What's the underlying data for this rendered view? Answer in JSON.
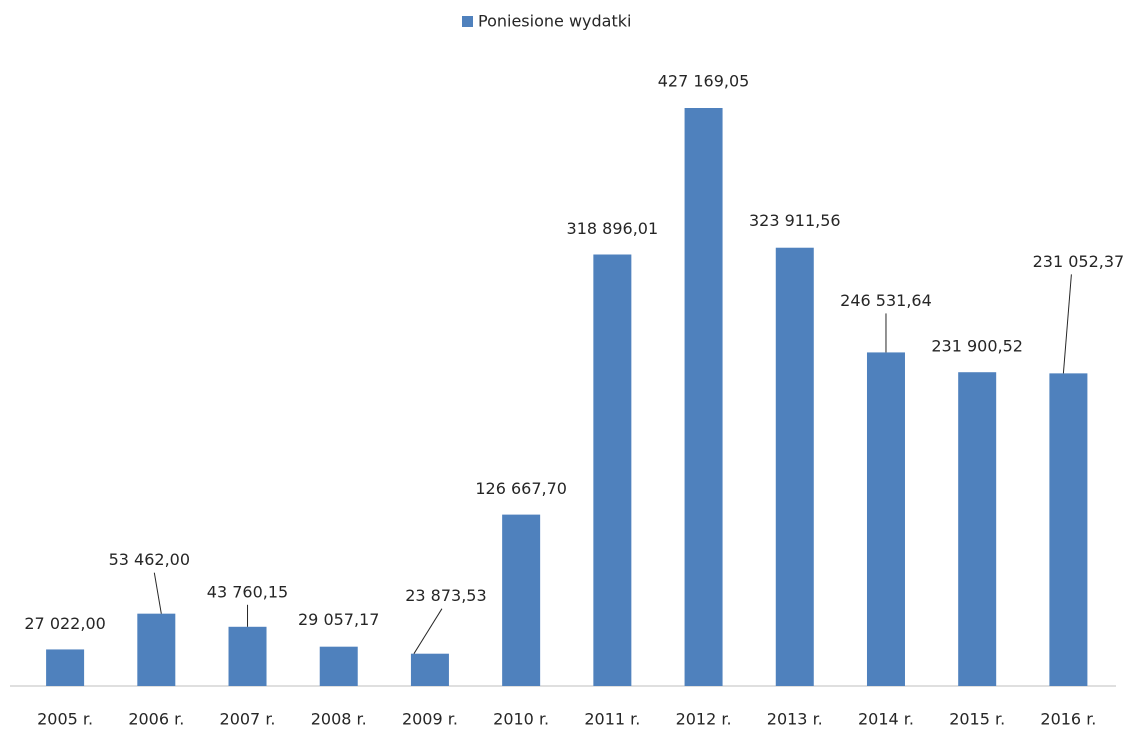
{
  "chart_data": {
    "type": "bar",
    "categories": [
      "2005 r.",
      "2006 r.",
      "2007 r.",
      "2008 r.",
      "2009 r.",
      "2010 r.",
      "2011 r.",
      "2012 r.",
      "2013 r.",
      "2014 r.",
      "2015 r.",
      "2016 r."
    ],
    "series": [
      {
        "name": "Poniesione wydatki",
        "color": "#4f81bd",
        "values": [
          27022.0,
          53462.0,
          43760.15,
          29057.17,
          23873.53,
          126667.7,
          318896.01,
          427169.05,
          323911.56,
          246531.64,
          231900.52,
          231052.37
        ],
        "value_labels": [
          "27 022,00",
          "53 462,00",
          "43 760,15",
          "29 057,17",
          "23 873,53",
          "126 667,70",
          "318 896,01",
          "427 169,05",
          "323 911,56",
          "246 531,64",
          "231 900,52",
          "231 052,37"
        ]
      }
    ],
    "legend": "top"
  }
}
